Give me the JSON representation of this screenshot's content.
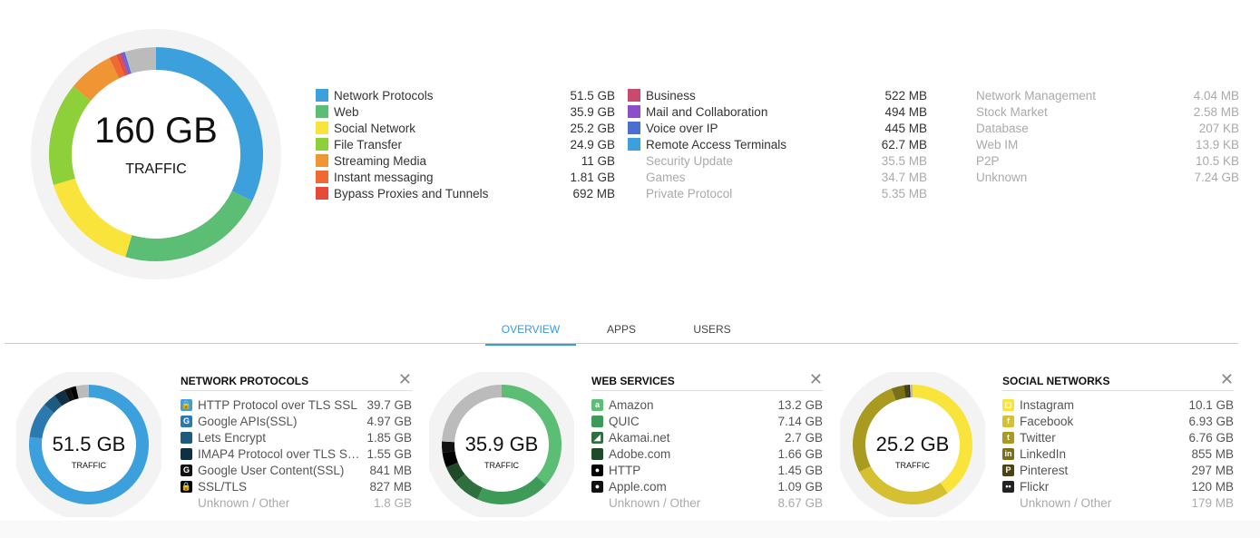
{
  "main": {
    "total": "160 GB",
    "label": "TRAFFIC",
    "other_value": 7.5,
    "other_color": "#bbbbbb",
    "legend": [
      [
        {
          "name": "Network Protocols",
          "value": "51.5 GB",
          "gb": 51.5,
          "color": "#3ca0dc"
        },
        {
          "name": "Web",
          "value": "35.9 GB",
          "gb": 35.9,
          "color": "#5cbd74"
        },
        {
          "name": "Social Network",
          "value": "25.2 GB",
          "gb": 25.2,
          "color": "#f8e43a"
        },
        {
          "name": "File Transfer",
          "value": "24.9 GB",
          "gb": 24.9,
          "color": "#8dd03a"
        },
        {
          "name": "Streaming Media",
          "value": "11 GB",
          "gb": 11,
          "color": "#ef9534"
        },
        {
          "name": "Instant messaging",
          "value": "1.81 GB",
          "gb": 1.81,
          "color": "#ee6a32"
        },
        {
          "name": "Bypass Proxies and Tunnels",
          "value": "692 MB",
          "gb": 0.692,
          "color": "#e84a3a"
        }
      ],
      [
        {
          "name": "Business",
          "value": "522 MB",
          "gb": 0.522,
          "color": "#c94a6e"
        },
        {
          "name": "Mail and Collaboration",
          "value": "494 MB",
          "gb": 0.494,
          "color": "#8a4fc9"
        },
        {
          "name": "Voice over IP",
          "value": "445 MB",
          "gb": 0.445,
          "color": "#4a6fd0"
        },
        {
          "name": "Remote Access Terminals",
          "value": "62.7 MB",
          "gb": 0.0627,
          "color": "#3ca0dc"
        },
        {
          "name": "Security Update",
          "value": "35.5 MB",
          "dim": true
        },
        {
          "name": "Games",
          "value": "34.7 MB",
          "dim": true
        },
        {
          "name": "Private Protocol",
          "value": "5.35 MB",
          "dim": true
        }
      ],
      [
        {
          "name": "Network Management",
          "value": "4.04 MB",
          "dim": true
        },
        {
          "name": "Stock Market",
          "value": "2.58 MB",
          "dim": true
        },
        {
          "name": "Database",
          "value": "207 KB",
          "dim": true
        },
        {
          "name": "Web IM",
          "value": "13.9 KB",
          "dim": true
        },
        {
          "name": "P2P",
          "value": "10.5 KB",
          "dim": true
        },
        {
          "name": "Unknown",
          "value": "7.24 GB",
          "dim": true
        }
      ]
    ]
  },
  "tabs": [
    "OVERVIEW",
    "APPS",
    "USERS"
  ],
  "panels": [
    {
      "title": "NETWORK PROTOCOLS",
      "total": "51.5 GB",
      "label": "TRAFFIC",
      "items": [
        {
          "icon": "lock",
          "glyph": "🔒",
          "name": "HTTP Protocol over TLS SSL",
          "value": "39.7 GB",
          "gb": 39.7,
          "color": "#3ca0dc"
        },
        {
          "icon": "google",
          "glyph": "G",
          "name": "Google APIs(SSL)",
          "value": "4.97 GB",
          "gb": 4.97,
          "color": "#2a7ab0"
        },
        {
          "icon": "square",
          "glyph": "",
          "name": "Lets Encrypt",
          "value": "1.85 GB",
          "gb": 1.85,
          "color": "#1d5a7f"
        },
        {
          "icon": "square",
          "glyph": "",
          "name": "IMAP4 Protocol over TLS SSL",
          "value": "1.55 GB",
          "gb": 1.55,
          "color": "#0f2f45"
        },
        {
          "icon": "google",
          "glyph": "G",
          "name": "Google User Content(SSL)",
          "value": "841 MB",
          "gb": 0.841,
          "color": "#111111"
        },
        {
          "icon": "lock",
          "glyph": "🔒",
          "name": "SSL/TLS",
          "value": "827 MB",
          "gb": 0.827,
          "color": "#000000"
        },
        {
          "name": "Unknown / Other",
          "value": "1.8 GB",
          "gb": 1.8,
          "color": "#bbbbbb",
          "dim": true
        }
      ]
    },
    {
      "title": "WEB SERVICES",
      "total": "35.9 GB",
      "label": "TRAFFIC",
      "items": [
        {
          "icon": "amazon",
          "glyph": "a",
          "name": "Amazon",
          "value": "13.2 GB",
          "gb": 13.2,
          "color": "#5cbd74"
        },
        {
          "icon": "square",
          "glyph": "",
          "name": "QUIC",
          "value": "7.14 GB",
          "gb": 7.14,
          "color": "#3e9a57"
        },
        {
          "icon": "akamai",
          "glyph": "◢",
          "name": "Akamai.net",
          "value": "2.7 GB",
          "gb": 2.7,
          "color": "#2f6e3e"
        },
        {
          "icon": "square",
          "glyph": "",
          "name": "Adobe.com",
          "value": "1.66 GB",
          "gb": 1.66,
          "color": "#1f4a2a"
        },
        {
          "icon": "globe",
          "glyph": "●",
          "name": "HTTP",
          "value": "1.45 GB",
          "gb": 1.45,
          "color": "#000000"
        },
        {
          "icon": "apple",
          "glyph": "●",
          "name": "Apple.com",
          "value": "1.09 GB",
          "gb": 1.09,
          "color": "#111111"
        },
        {
          "name": "Unknown / Other",
          "value": "8.67 GB",
          "gb": 8.67,
          "color": "#bbbbbb",
          "dim": true
        }
      ]
    },
    {
      "title": "SOCIAL NETWORKS",
      "total": "25.2 GB",
      "label": "TRAFFIC",
      "items": [
        {
          "icon": "instagram",
          "glyph": "◻",
          "name": "Instagram",
          "value": "10.1 GB",
          "gb": 10.1,
          "color": "#f8e43a"
        },
        {
          "icon": "facebook",
          "glyph": "f",
          "name": "Facebook",
          "value": "6.93 GB",
          "gb": 6.93,
          "color": "#d4c030"
        },
        {
          "icon": "twitter",
          "glyph": "t",
          "name": "Twitter",
          "value": "6.76 GB",
          "gb": 6.76,
          "color": "#a99a20"
        },
        {
          "icon": "linkedin",
          "glyph": "in",
          "name": "LinkedIn",
          "value": "855 MB",
          "gb": 0.855,
          "color": "#7a701a"
        },
        {
          "icon": "pinterest",
          "glyph": "P",
          "name": "Pinterest",
          "value": "297 MB",
          "gb": 0.297,
          "color": "#4a4510"
        },
        {
          "icon": "flickr",
          "glyph": "••",
          "name": "Flickr",
          "value": "120 MB",
          "gb": 0.12,
          "color": "#222222"
        },
        {
          "name": "Unknown / Other",
          "value": "179 MB",
          "gb": 0.179,
          "color": "#bbbbbb",
          "dim": true
        }
      ]
    }
  ]
}
